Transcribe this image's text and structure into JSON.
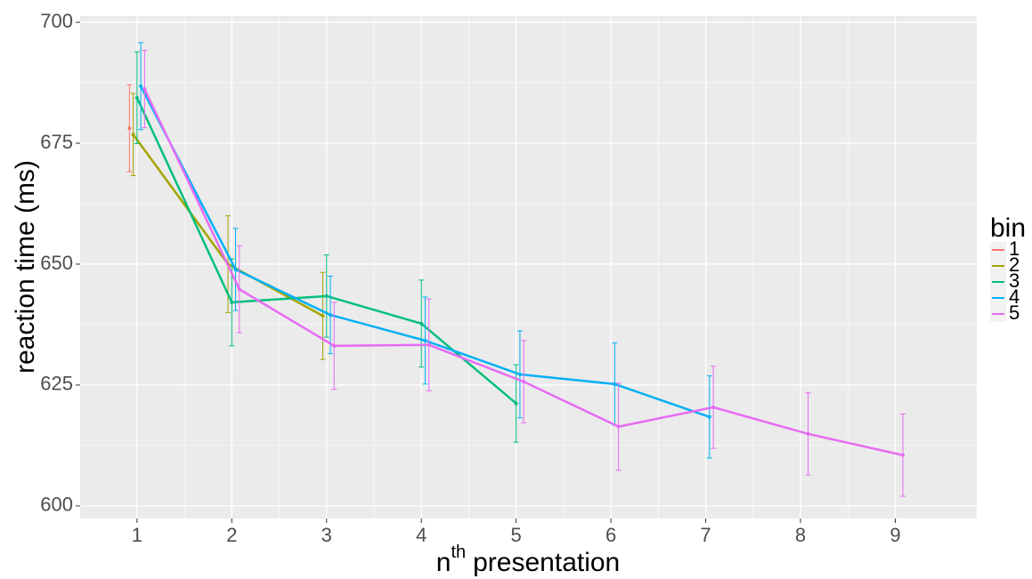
{
  "chart_data": {
    "type": "line",
    "ylabel": "reaction time (ms)",
    "xlabel": {
      "base": "n",
      "sup": "th",
      "rest": "presentation"
    },
    "legend_title": "bin",
    "legend": "right",
    "grid": true,
    "xlim": [
      0.4,
      9.86
    ],
    "ylim": [
      597.4,
      701.3
    ],
    "xticks": [
      1,
      2,
      3,
      4,
      5,
      6,
      7,
      8,
      9
    ],
    "yticks": [
      600,
      625,
      650,
      675,
      700
    ],
    "series": [
      {
        "name": "1",
        "color": "#F8766D",
        "x": [
          1
        ],
        "values": [
          678.1
        ],
        "errors": [
          9
        ]
      },
      {
        "name": "2",
        "color": "#A3A500",
        "x": [
          1,
          2,
          3
        ],
        "values": [
          676.8,
          650,
          639.3
        ],
        "errors": [
          8.5,
          10,
          9
        ]
      },
      {
        "name": "3",
        "color": "#00BF7D",
        "x": [
          1,
          2,
          3,
          4,
          5
        ],
        "values": [
          684.4,
          642.1,
          643.4,
          637.7,
          621.2
        ],
        "errors": [
          9.5,
          9,
          8.5,
          9,
          8
        ]
      },
      {
        "name": "4",
        "color": "#00B0F6",
        "x": [
          1,
          2,
          3,
          4,
          5,
          6,
          7
        ],
        "values": [
          686.8,
          648.9,
          639.5,
          634.2,
          627.2,
          625.2,
          618.4
        ],
        "errors": [
          9,
          8.5,
          8,
          9,
          9,
          8.5,
          8.5
        ]
      },
      {
        "name": "5",
        "color": "#E76BF3",
        "x": [
          1,
          2,
          3,
          4,
          5,
          6,
          7,
          8,
          9
        ],
        "values": [
          686.2,
          644.8,
          633.1,
          633.3,
          625.7,
          616.4,
          620.4,
          614.9,
          610.5
        ],
        "errors": [
          8,
          9,
          9,
          9.5,
          8.5,
          9,
          8.5,
          8.5,
          8.5
        ]
      }
    ]
  }
}
